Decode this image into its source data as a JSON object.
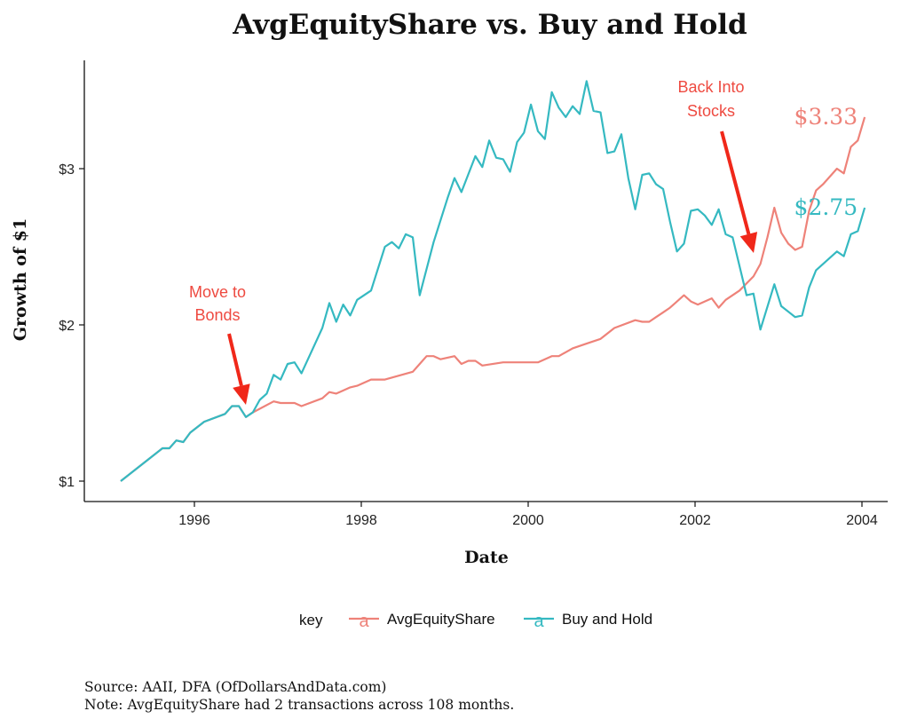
{
  "chart_data": {
    "type": "line",
    "title": "AvgEquityShare vs. Buy and Hold",
    "xlabel": "Date",
    "ylabel": "Growth of $1",
    "x_ticks": [
      "1996",
      "1998",
      "2000",
      "2002",
      "2004"
    ],
    "y_ticks": [
      "$1",
      "$2",
      "$3"
    ],
    "ylim": [
      0.87,
      3.62
    ],
    "xlim": [
      "1994-10",
      "2004-06"
    ],
    "grid": false,
    "legend": {
      "title": "key",
      "placement": "bottom",
      "entries": [
        "AvgEquityShare",
        "Buy and Hold"
      ],
      "key_glyph": "a"
    },
    "series": [
      {
        "name": "AvgEquityShare",
        "color": "#ee8279",
        "end_label": "$3.33",
        "points": [
          [
            "1995-02",
            1.0
          ],
          [
            "1995-06",
            1.14
          ],
          [
            "1995-08",
            1.21
          ],
          [
            "1995-09",
            1.21
          ],
          [
            "1995-10",
            1.26
          ],
          [
            "1995-11",
            1.25
          ],
          [
            "1995-12",
            1.31
          ],
          [
            "1996-02",
            1.38
          ],
          [
            "1996-05",
            1.43
          ],
          [
            "1996-06",
            1.48
          ],
          [
            "1996-07",
            1.48
          ],
          [
            "1996-08",
            1.41
          ],
          [
            "1996-09",
            1.44
          ],
          [
            "1996-12",
            1.51
          ],
          [
            "1997-01",
            1.5
          ],
          [
            "1997-03",
            1.5
          ],
          [
            "1997-04",
            1.48
          ],
          [
            "1997-07",
            1.53
          ],
          [
            "1997-08",
            1.57
          ],
          [
            "1997-09",
            1.56
          ],
          [
            "1997-11",
            1.6
          ],
          [
            "1997-12",
            1.61
          ],
          [
            "1998-02",
            1.65
          ],
          [
            "1998-04",
            1.65
          ],
          [
            "1998-08",
            1.7
          ],
          [
            "1998-09",
            1.75
          ],
          [
            "1998-10",
            1.8
          ],
          [
            "1998-11",
            1.8
          ],
          [
            "1998-12",
            1.78
          ],
          [
            "1999-02",
            1.8
          ],
          [
            "1999-03",
            1.75
          ],
          [
            "1999-04",
            1.77
          ],
          [
            "1999-05",
            1.77
          ],
          [
            "1999-06",
            1.74
          ],
          [
            "1999-09",
            1.76
          ],
          [
            "2000-02",
            1.76
          ],
          [
            "2000-04",
            1.8
          ],
          [
            "2000-05",
            1.8
          ],
          [
            "2000-07",
            1.85
          ],
          [
            "2000-09",
            1.88
          ],
          [
            "2000-11",
            1.91
          ],
          [
            "2001-01",
            1.98
          ],
          [
            "2001-04",
            2.03
          ],
          [
            "2001-05",
            2.02
          ],
          [
            "2001-06",
            2.02
          ],
          [
            "2001-07",
            2.05
          ],
          [
            "2001-08",
            2.08
          ],
          [
            "2001-09",
            2.11
          ],
          [
            "2001-11",
            2.19
          ],
          [
            "2001-12",
            2.15
          ],
          [
            "2002-01",
            2.13
          ],
          [
            "2002-03",
            2.17
          ],
          [
            "2002-04",
            2.11
          ],
          [
            "2002-05",
            2.16
          ],
          [
            "2002-07",
            2.22
          ],
          [
            "2002-09",
            2.31
          ],
          [
            "2002-10",
            2.39
          ],
          [
            "2002-11",
            2.56
          ],
          [
            "2002-12",
            2.75
          ],
          [
            "2003-01",
            2.59
          ],
          [
            "2003-02",
            2.52
          ],
          [
            "2003-03",
            2.48
          ],
          [
            "2003-04",
            2.5
          ],
          [
            "2003-05",
            2.73
          ],
          [
            "2003-06",
            2.86
          ],
          [
            "2003-07",
            2.9
          ],
          [
            "2003-09",
            3.0
          ],
          [
            "2003-10",
            2.97
          ],
          [
            "2003-11",
            3.14
          ],
          [
            "2003-12",
            3.18
          ],
          [
            "2004-01",
            3.33
          ]
        ]
      },
      {
        "name": "Buy and Hold",
        "color": "#35b9c1",
        "end_label": "$2.75",
        "points": [
          [
            "1995-02",
            1.0
          ],
          [
            "1995-06",
            1.14
          ],
          [
            "1995-08",
            1.21
          ],
          [
            "1995-09",
            1.21
          ],
          [
            "1995-10",
            1.26
          ],
          [
            "1995-11",
            1.25
          ],
          [
            "1995-12",
            1.31
          ],
          [
            "1996-02",
            1.38
          ],
          [
            "1996-05",
            1.43
          ],
          [
            "1996-06",
            1.48
          ],
          [
            "1996-07",
            1.48
          ],
          [
            "1996-08",
            1.41
          ],
          [
            "1996-09",
            1.44
          ],
          [
            "1996-10",
            1.52
          ],
          [
            "1996-11",
            1.56
          ],
          [
            "1996-12",
            1.68
          ],
          [
            "1997-01",
            1.65
          ],
          [
            "1997-02",
            1.75
          ],
          [
            "1997-03",
            1.76
          ],
          [
            "1997-04",
            1.69
          ],
          [
            "1997-07",
            1.98
          ],
          [
            "1997-08",
            2.14
          ],
          [
            "1997-09",
            2.02
          ],
          [
            "1997-10",
            2.13
          ],
          [
            "1997-11",
            2.06
          ],
          [
            "1997-12",
            2.16
          ],
          [
            "1998-02",
            2.22
          ],
          [
            "1998-04",
            2.5
          ],
          [
            "1998-05",
            2.53
          ],
          [
            "1998-06",
            2.49
          ],
          [
            "1998-07",
            2.58
          ],
          [
            "1998-08",
            2.56
          ],
          [
            "1998-09",
            2.19
          ],
          [
            "1998-11",
            2.53
          ],
          [
            "1999-01",
            2.81
          ],
          [
            "1999-02",
            2.94
          ],
          [
            "1999-03",
            2.85
          ],
          [
            "1999-05",
            3.08
          ],
          [
            "1999-06",
            3.01
          ],
          [
            "1999-07",
            3.18
          ],
          [
            "1999-08",
            3.07
          ],
          [
            "1999-09",
            3.06
          ],
          [
            "1999-10",
            2.98
          ],
          [
            "1999-11",
            3.17
          ],
          [
            "1999-12",
            3.23
          ],
          [
            "2000-01",
            3.41
          ],
          [
            "2000-02",
            3.24
          ],
          [
            "2000-03",
            3.19
          ],
          [
            "2000-04",
            3.49
          ],
          [
            "2000-05",
            3.39
          ],
          [
            "2000-06",
            3.33
          ],
          [
            "2000-07",
            3.4
          ],
          [
            "2000-08",
            3.35
          ],
          [
            "2000-09",
            3.56
          ],
          [
            "2000-10",
            3.37
          ],
          [
            "2000-11",
            3.36
          ],
          [
            "2000-12",
            3.1
          ],
          [
            "2001-01",
            3.11
          ],
          [
            "2001-02",
            3.22
          ],
          [
            "2001-03",
            2.94
          ],
          [
            "2001-04",
            2.74
          ],
          [
            "2001-05",
            2.96
          ],
          [
            "2001-06",
            2.97
          ],
          [
            "2001-07",
            2.9
          ],
          [
            "2001-08",
            2.87
          ],
          [
            "2001-09",
            2.66
          ],
          [
            "2001-10",
            2.47
          ],
          [
            "2001-11",
            2.52
          ],
          [
            "2001-12",
            2.73
          ],
          [
            "2002-01",
            2.74
          ],
          [
            "2002-02",
            2.7
          ],
          [
            "2002-03",
            2.64
          ],
          [
            "2002-04",
            2.74
          ],
          [
            "2002-05",
            2.58
          ],
          [
            "2002-06",
            2.56
          ],
          [
            "2002-08",
            2.19
          ],
          [
            "2002-09",
            2.2
          ],
          [
            "2002-10",
            1.97
          ],
          [
            "2002-12",
            2.26
          ],
          [
            "2003-01",
            2.12
          ],
          [
            "2003-03",
            2.05
          ],
          [
            "2003-04",
            2.06
          ],
          [
            "2003-05",
            2.24
          ],
          [
            "2003-06",
            2.35
          ],
          [
            "2003-07",
            2.39
          ],
          [
            "2003-09",
            2.47
          ],
          [
            "2003-10",
            2.44
          ],
          [
            "2003-11",
            2.58
          ],
          [
            "2003-12",
            2.6
          ],
          [
            "2004-01",
            2.75
          ]
        ]
      }
    ],
    "annotations": [
      {
        "lines": [
          "Move to",
          "Bonds"
        ],
        "points_to": "1996-09",
        "color": "#ee4a40"
      },
      {
        "lines": [
          "Back Into",
          "Stocks"
        ],
        "points_to": "2002-10",
        "color": "#ee4a40"
      }
    ]
  },
  "caption": {
    "source": "Source: AAII, DFA (OfDollarsAndData.com)",
    "note": "Note: AvgEquityShare had 2 transactions across 108 months."
  }
}
